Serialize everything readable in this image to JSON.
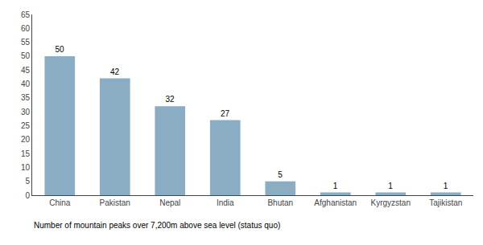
{
  "chart_data": {
    "type": "bar",
    "categories": [
      "China",
      "Pakistan",
      "Nepal",
      "India",
      "Bhutan",
      "Afghanistan",
      "Kyrgyzstan",
      "Tajikistan"
    ],
    "values": [
      50,
      42,
      32,
      27,
      5,
      1,
      1,
      1
    ],
    "color": "#8BADC4",
    "ylim": [
      0,
      65
    ],
    "yticks": [
      0,
      5,
      10,
      15,
      20,
      25,
      30,
      35,
      40,
      45,
      50,
      55,
      60,
      65
    ],
    "grid": false,
    "data_labels": true,
    "caption": "Number of mountain peaks over 7,200m above sea level (status quo)"
  }
}
